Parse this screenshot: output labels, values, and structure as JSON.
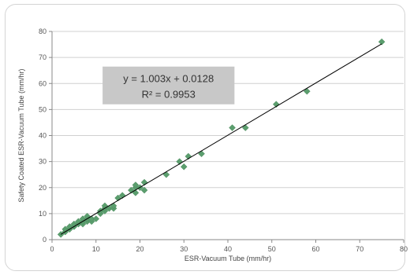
{
  "chart_data": {
    "type": "scatter",
    "xlabel": "ESR-Vacuum Tube (mm/hr)",
    "ylabel": "Safety Coated ESR-Vacuum Tube (mm/hr)",
    "xlim": [
      0,
      80
    ],
    "ylim": [
      0,
      80
    ],
    "xticks": [
      0,
      10,
      20,
      30,
      40,
      50,
      60,
      70,
      80
    ],
    "yticks": [
      0,
      10,
      20,
      30,
      40,
      50,
      60,
      70,
      80
    ],
    "grid": "horizontal",
    "marker_color": "#5b9e6e",
    "trendline_color": "#000000",
    "annotation_bg": "#c8c8c8",
    "annotation": {
      "equation": "y = 1.003x  + 0.0128",
      "r_squared": "R² = 0.9953"
    },
    "trendline": {
      "slope": 1.003,
      "intercept": 0.0128,
      "x_range": [
        2,
        75
      ]
    },
    "points": [
      [
        2,
        2
      ],
      [
        3,
        3
      ],
      [
        3,
        4
      ],
      [
        4,
        4
      ],
      [
        4,
        5
      ],
      [
        5,
        5
      ],
      [
        5,
        6
      ],
      [
        6,
        6
      ],
      [
        6,
        7
      ],
      [
        7,
        6
      ],
      [
        7,
        7
      ],
      [
        7,
        8
      ],
      [
        8,
        7
      ],
      [
        8,
        8
      ],
      [
        8,
        9
      ],
      [
        9,
        7
      ],
      [
        9,
        8
      ],
      [
        10,
        8
      ],
      [
        11,
        10
      ],
      [
        11,
        11
      ],
      [
        12,
        11
      ],
      [
        12,
        12
      ],
      [
        12,
        13
      ],
      [
        13,
        12
      ],
      [
        14,
        12
      ],
      [
        14,
        13
      ],
      [
        15,
        16
      ],
      [
        16,
        17
      ],
      [
        18,
        19
      ],
      [
        19,
        18
      ],
      [
        19,
        20
      ],
      [
        19,
        21
      ],
      [
        20,
        20
      ],
      [
        21,
        19
      ],
      [
        21,
        22
      ],
      [
        26,
        25
      ],
      [
        29,
        30
      ],
      [
        30,
        28
      ],
      [
        31,
        32
      ],
      [
        34,
        33
      ],
      [
        41,
        43
      ],
      [
        44,
        43
      ],
      [
        51,
        52
      ],
      [
        58,
        57
      ],
      [
        75,
        76
      ]
    ]
  }
}
